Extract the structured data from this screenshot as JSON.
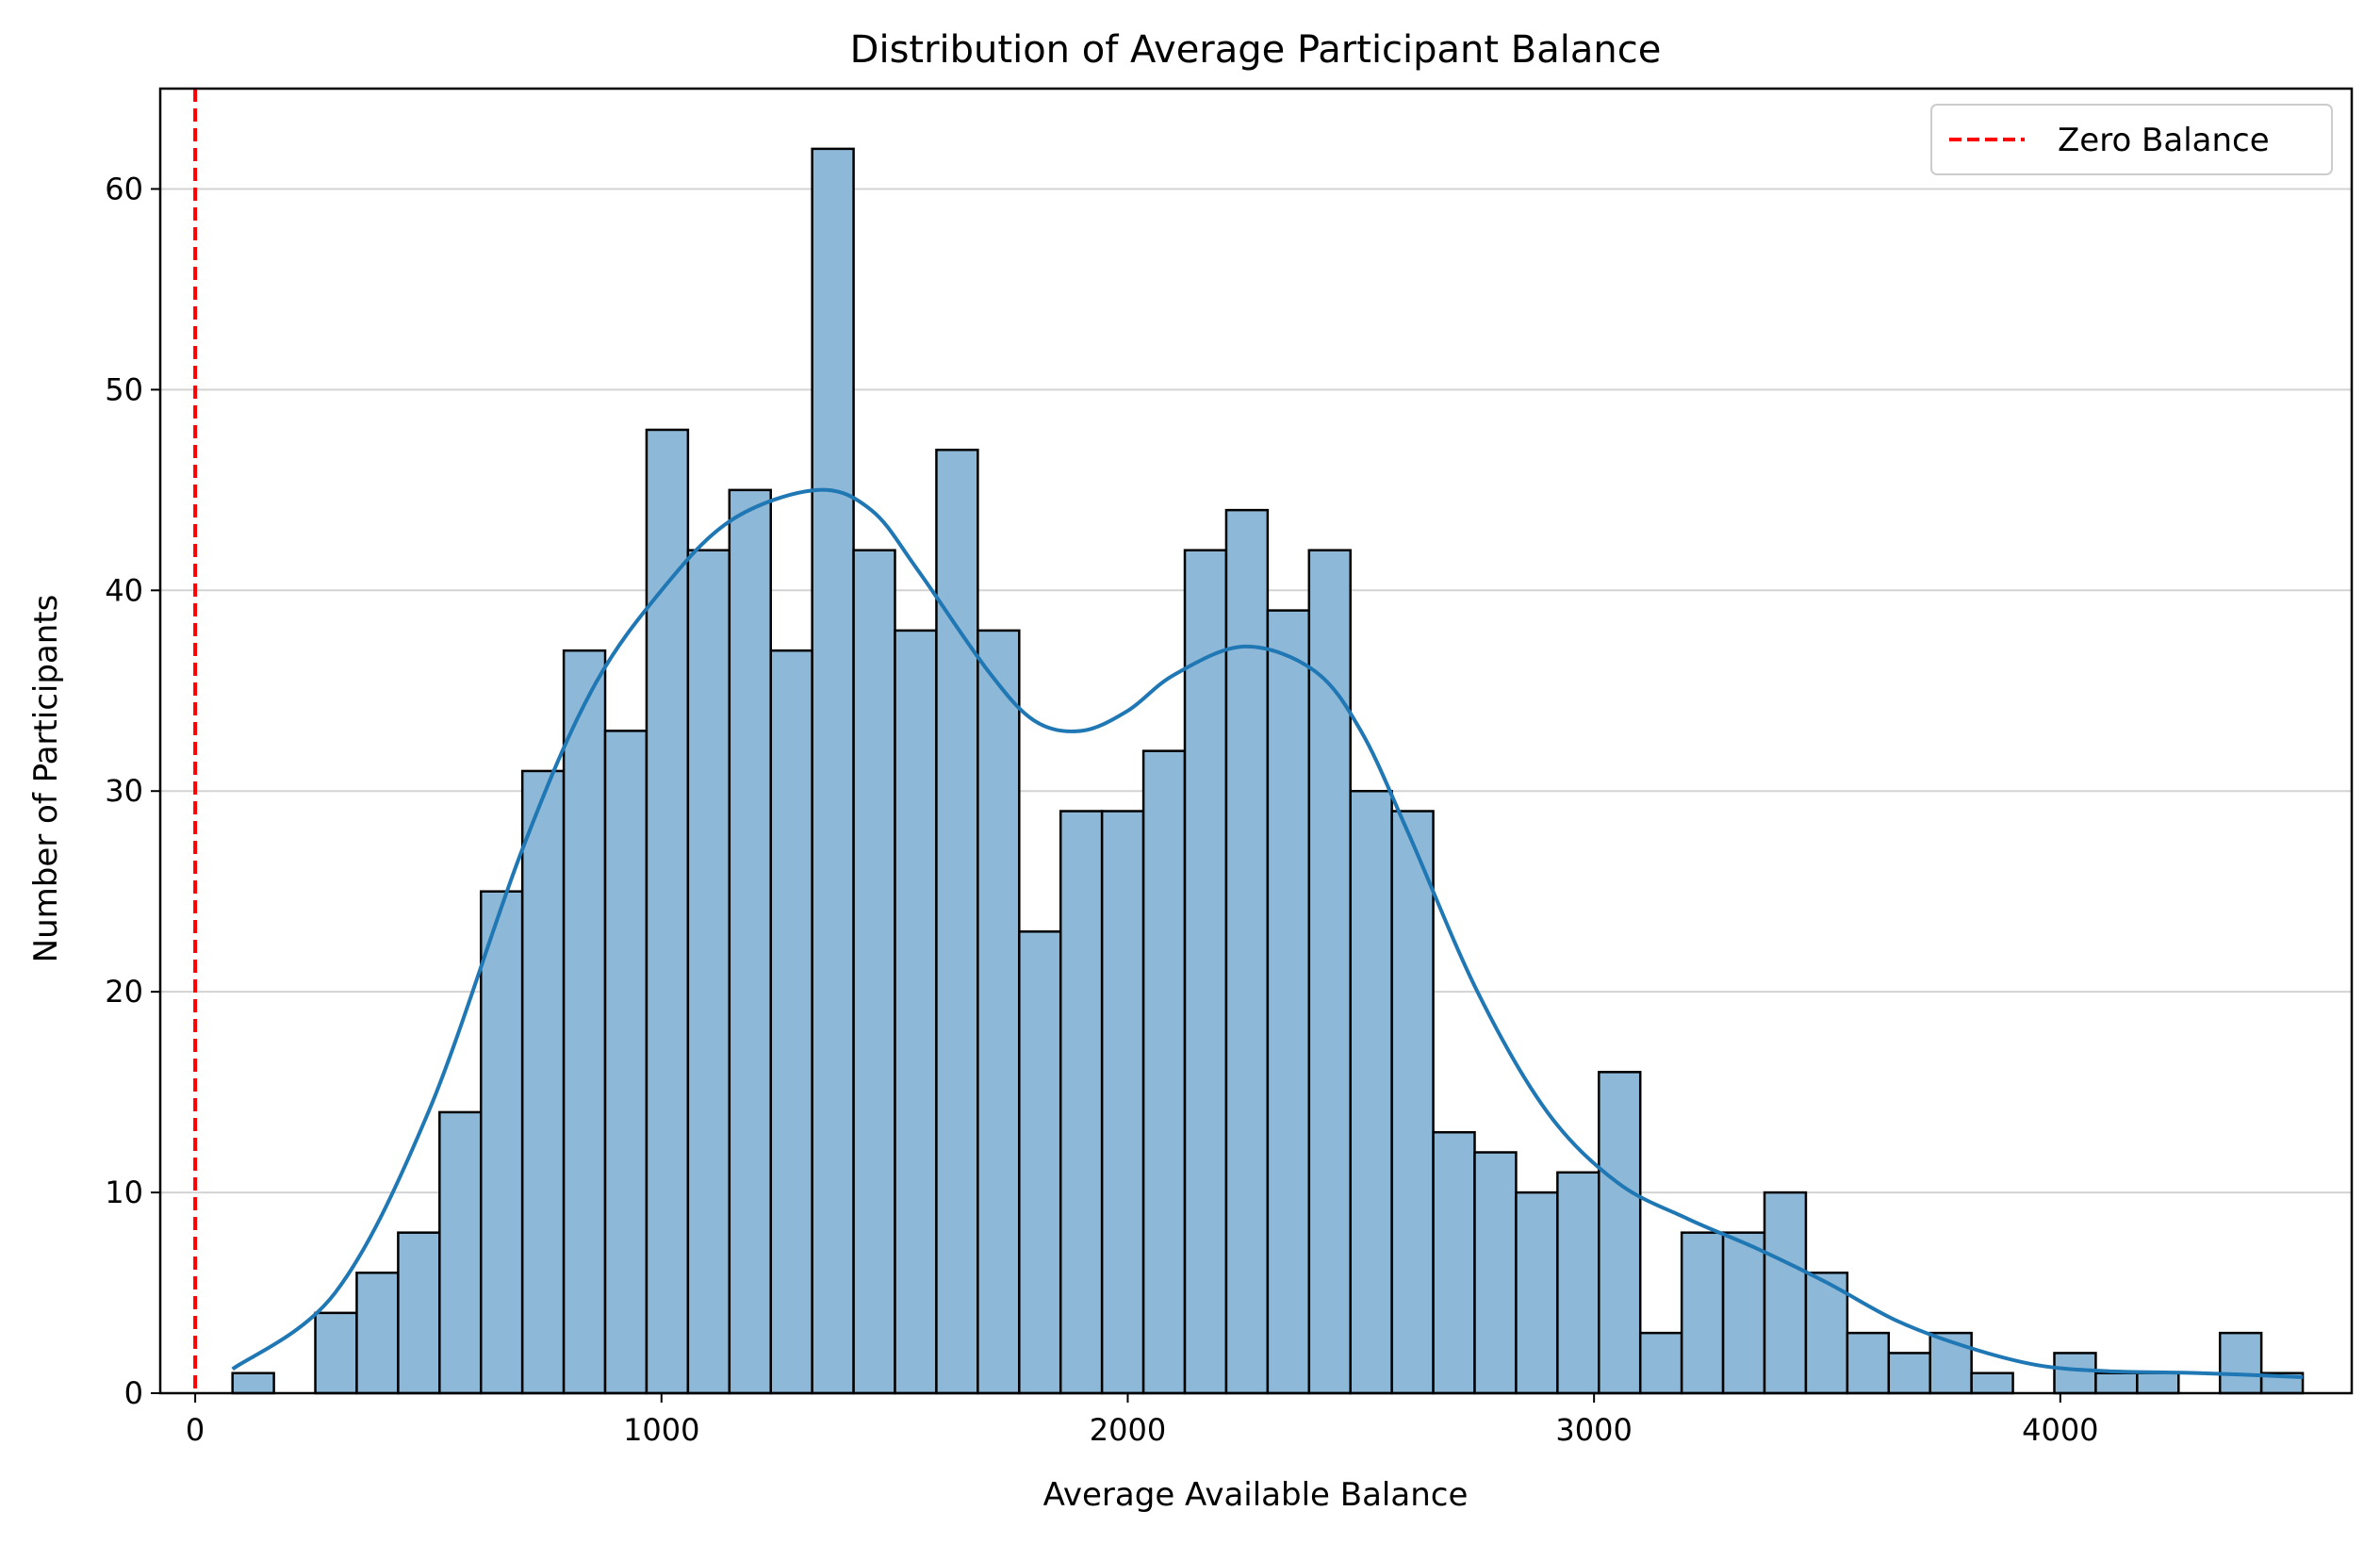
{
  "chart_data": {
    "type": "bar",
    "title": "Distribution of Average Participant Balance",
    "xlabel": "Average Available Balance",
    "ylabel": "Number of Participants",
    "xlim": [
      -75,
      4625
    ],
    "ylim": [
      0,
      65
    ],
    "xticks": [
      "0",
      "1000",
      "2000",
      "3000",
      "4000"
    ],
    "yticks": [
      "0",
      "10",
      "20",
      "30",
      "40",
      "50",
      "60"
    ],
    "grid": "y",
    "legend_position": "top-right",
    "bar_color": "#8db8d8",
    "bar_edge_color": "#000000",
    "bins": {
      "start": 80,
      "width": 88.8,
      "counts": [
        1,
        0,
        4,
        6,
        8,
        14,
        25,
        31,
        37,
        33,
        48,
        42,
        45,
        37,
        62,
        42,
        38,
        47,
        38,
        23,
        29,
        29,
        32,
        42,
        44,
        39,
        42,
        30,
        29,
        13,
        12,
        10,
        11,
        16,
        3,
        8,
        8,
        10,
        6,
        3,
        2,
        3,
        1,
        0,
        2,
        1,
        1,
        0,
        3,
        1
      ]
    },
    "kde": {
      "name": "",
      "color": "#1f77b4",
      "x": [
        80,
        300,
        500,
        700,
        850,
        1000,
        1150,
        1333,
        1450,
        1550,
        1700,
        1800,
        1900,
        2000,
        2100,
        2250,
        2400,
        2500,
        2600,
        2750,
        2900,
        3050,
        3200,
        3350,
        3500,
        3650,
        3800,
        3950,
        4100,
        4300,
        4520
      ],
      "y": [
        1.2,
        5,
        14,
        27,
        35,
        40,
        43.5,
        45,
        44,
        41,
        36,
        33.5,
        33,
        34,
        35.8,
        37.2,
        36,
        33,
        28,
        20,
        14,
        10.5,
        8.7,
        7.2,
        5.5,
        3.6,
        2.3,
        1.4,
        1.1,
        1.0,
        0.8
      ]
    },
    "reference_line": {
      "name": "Zero Balance",
      "x": 0,
      "color": "#ff0000",
      "style": "dashed"
    }
  }
}
